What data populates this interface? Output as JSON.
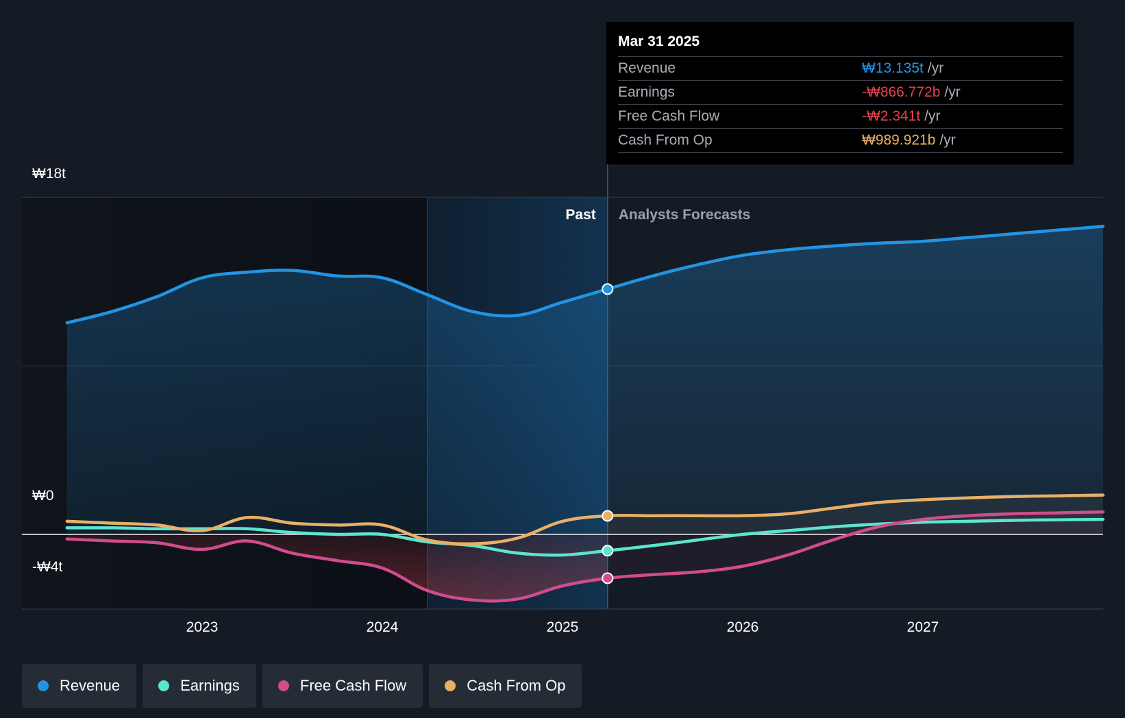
{
  "chart_data": {
    "type": "area",
    "title": "",
    "xlabel": "",
    "ylabel": "",
    "y_unit": "₩ trillion",
    "ylim": [
      -4,
      18
    ],
    "y_tick_labels": [
      "₩18t",
      "₩0",
      "-₩4t"
    ],
    "x_ticks": [
      2023,
      2024,
      2025,
      2026,
      2027
    ],
    "xlim": [
      2022.24,
      2028.0
    ],
    "grid": true,
    "legend_position": "bottom-left",
    "past_label": "Past",
    "forecast_label": "Analysts Forecasts",
    "past_end": 2025.25,
    "highlight_start": 2024.25,
    "series": [
      {
        "name": "Revenue",
        "key": "revenue",
        "color": "#2394e3",
        "x": [
          2022.25,
          2022.5,
          2022.75,
          2023.0,
          2023.25,
          2023.5,
          2023.75,
          2024.0,
          2024.25,
          2024.5,
          2024.75,
          2025.0,
          2025.25,
          2025.5,
          2025.75,
          2026.0,
          2026.25,
          2026.5,
          2026.75,
          2027.0,
          2027.25,
          2027.5,
          2027.75,
          2028.0
        ],
        "y": [
          11.3,
          11.9,
          12.7,
          13.7,
          14.0,
          14.1,
          13.8,
          13.7,
          12.8,
          11.9,
          11.7,
          12.4,
          13.1,
          13.8,
          14.4,
          14.9,
          15.2,
          15.4,
          15.55,
          15.65,
          15.85,
          16.05,
          16.25,
          16.45
        ]
      },
      {
        "name": "Earnings",
        "key": "earnings",
        "color": "#5be5cf",
        "x": [
          2022.25,
          2022.5,
          2022.75,
          2023.0,
          2023.25,
          2023.5,
          2023.75,
          2024.0,
          2024.25,
          2024.5,
          2024.75,
          2025.0,
          2025.25,
          2025.5,
          2025.75,
          2026.0,
          2026.25,
          2026.5,
          2026.75,
          2027.0,
          2027.25,
          2027.5,
          2027.75,
          2028.0
        ],
        "y": [
          0.35,
          0.35,
          0.3,
          0.3,
          0.3,
          0.1,
          0.0,
          0.0,
          -0.4,
          -0.6,
          -1.0,
          -1.1,
          -0.87,
          -0.6,
          -0.3,
          0.0,
          0.2,
          0.4,
          0.55,
          0.65,
          0.7,
          0.75,
          0.78,
          0.8
        ]
      },
      {
        "name": "Free Cash Flow",
        "key": "fcf",
        "color": "#d14c8d",
        "x": [
          2022.25,
          2022.5,
          2022.75,
          2023.0,
          2023.25,
          2023.5,
          2023.75,
          2024.0,
          2024.25,
          2024.5,
          2024.75,
          2025.0,
          2025.25,
          2025.5,
          2025.75,
          2026.0,
          2026.25,
          2026.5,
          2026.75,
          2027.0,
          2027.25,
          2027.5,
          2027.75,
          2028.0
        ],
        "y": [
          -0.25,
          -0.35,
          -0.45,
          -0.8,
          -0.35,
          -1.0,
          -1.4,
          -1.8,
          -3.0,
          -3.5,
          -3.45,
          -2.75,
          -2.34,
          -2.15,
          -2.0,
          -1.7,
          -1.1,
          -0.3,
          0.4,
          0.8,
          1.0,
          1.1,
          1.15,
          1.2
        ]
      },
      {
        "name": "Cash From Op",
        "key": "cfo",
        "color": "#e8b066",
        "x": [
          2022.25,
          2022.5,
          2022.75,
          2023.0,
          2023.25,
          2023.5,
          2023.75,
          2024.0,
          2024.25,
          2024.5,
          2024.75,
          2025.0,
          2025.25,
          2025.5,
          2025.75,
          2026.0,
          2026.25,
          2026.5,
          2026.75,
          2027.0,
          2027.25,
          2027.5,
          2027.75,
          2028.0
        ],
        "y": [
          0.7,
          0.6,
          0.5,
          0.2,
          0.9,
          0.6,
          0.5,
          0.5,
          -0.3,
          -0.5,
          -0.2,
          0.7,
          0.99,
          1.0,
          1.0,
          1.0,
          1.1,
          1.4,
          1.7,
          1.85,
          1.95,
          2.02,
          2.06,
          2.1
        ]
      }
    ]
  },
  "tooltip": {
    "date": "Mar 31 2025",
    "rows": [
      {
        "label": "Revenue",
        "value": "₩13.135t",
        "unit": "/yr",
        "color": "#2394e3"
      },
      {
        "label": "Earnings",
        "value": "-₩866.772b",
        "unit": "/yr",
        "color": "#e2434d"
      },
      {
        "label": "Free Cash Flow",
        "value": "-₩2.341t",
        "unit": "/yr",
        "color": "#e2434d"
      },
      {
        "label": "Cash From Op",
        "value": "₩989.921b",
        "unit": "/yr",
        "color": "#e8b066"
      }
    ]
  },
  "legend": [
    {
      "label": "Revenue",
      "color": "#2394e3"
    },
    {
      "label": "Earnings",
      "color": "#5be5cf"
    },
    {
      "label": "Free Cash Flow",
      "color": "#d14c8d"
    },
    {
      "label": "Cash From Op",
      "color": "#e8b066"
    }
  ]
}
